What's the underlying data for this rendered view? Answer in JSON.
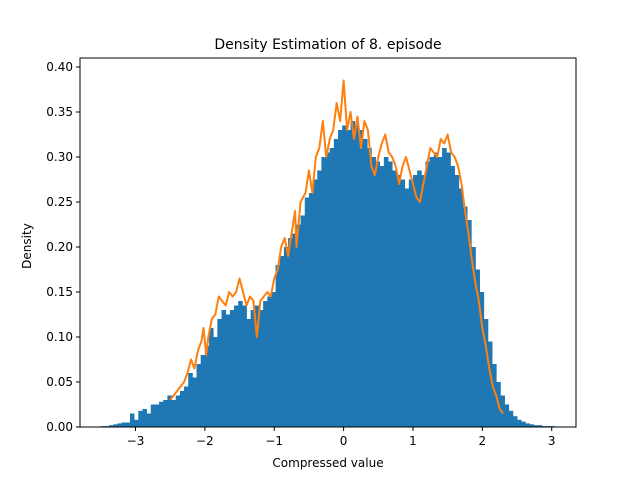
{
  "chart_data": {
    "type": "bar",
    "title": "Density Estimation of 8. episode",
    "xlabel": "Compressed value",
    "ylabel": "Density",
    "xlim": [
      -3.8,
      3.35
    ],
    "ylim": [
      0,
      0.41
    ],
    "xticks": [
      -3,
      -2,
      -1,
      0,
      1,
      2,
      3
    ],
    "xtick_labels": [
      "−3",
      "−2",
      "−1",
      "0",
      "1",
      "2",
      "3"
    ],
    "yticks": [
      0.0,
      0.05,
      0.1,
      0.15,
      0.2,
      0.25,
      0.3,
      0.35,
      0.4
    ],
    "ytick_labels": [
      "0.00",
      "0.05",
      "0.10",
      "0.15",
      "0.20",
      "0.25",
      "0.30",
      "0.35",
      "0.40"
    ],
    "grid": false,
    "series": [
      {
        "kind": "histogram",
        "color": "#1f77b4",
        "bin_width": 0.06,
        "bins": [
          [
            -3.5,
            0.001
          ],
          [
            -3.44,
            0.001
          ],
          [
            -3.38,
            0.002
          ],
          [
            -3.32,
            0.003
          ],
          [
            -3.26,
            0.004
          ],
          [
            -3.2,
            0.005
          ],
          [
            -3.14,
            0.005
          ],
          [
            -3.08,
            0.015
          ],
          [
            -3.02,
            0.008
          ],
          [
            -2.96,
            0.018
          ],
          [
            -2.9,
            0.02
          ],
          [
            -2.84,
            0.015
          ],
          [
            -2.78,
            0.025
          ],
          [
            -2.72,
            0.025
          ],
          [
            -2.66,
            0.028
          ],
          [
            -2.6,
            0.03
          ],
          [
            -2.54,
            0.035
          ],
          [
            -2.48,
            0.03
          ],
          [
            -2.42,
            0.035
          ],
          [
            -2.36,
            0.04
          ],
          [
            -2.3,
            0.045
          ],
          [
            -2.24,
            0.06
          ],
          [
            -2.18,
            0.055
          ],
          [
            -2.12,
            0.07
          ],
          [
            -2.06,
            0.08
          ],
          [
            -2.0,
            0.09
          ],
          [
            -1.94,
            0.11
          ],
          [
            -1.88,
            0.1
          ],
          [
            -1.82,
            0.12
          ],
          [
            -1.76,
            0.13
          ],
          [
            -1.7,
            0.125
          ],
          [
            -1.64,
            0.13
          ],
          [
            -1.58,
            0.135
          ],
          [
            -1.52,
            0.14
          ],
          [
            -1.46,
            0.135
          ],
          [
            -1.4,
            0.12
          ],
          [
            -1.34,
            0.13
          ],
          [
            -1.28,
            0.135
          ],
          [
            -1.22,
            0.13
          ],
          [
            -1.16,
            0.14
          ],
          [
            -1.1,
            0.145
          ],
          [
            -1.04,
            0.15
          ],
          [
            -0.98,
            0.18
          ],
          [
            -0.92,
            0.19
          ],
          [
            -0.86,
            0.2
          ],
          [
            -0.8,
            0.21
          ],
          [
            -0.74,
            0.215
          ],
          [
            -0.68,
            0.225
          ],
          [
            -0.62,
            0.235
          ],
          [
            -0.56,
            0.255
          ],
          [
            -0.5,
            0.26
          ],
          [
            -0.44,
            0.275
          ],
          [
            -0.38,
            0.285
          ],
          [
            -0.32,
            0.3
          ],
          [
            -0.26,
            0.305
          ],
          [
            -0.2,
            0.31
          ],
          [
            -0.14,
            0.32
          ],
          [
            -0.08,
            0.33
          ],
          [
            -0.02,
            0.335
          ],
          [
            0.04,
            0.33
          ],
          [
            0.1,
            0.34
          ],
          [
            0.16,
            0.335
          ],
          [
            0.22,
            0.33
          ],
          [
            0.28,
            0.32
          ],
          [
            0.34,
            0.31
          ],
          [
            0.4,
            0.3
          ],
          [
            0.46,
            0.295
          ],
          [
            0.52,
            0.29
          ],
          [
            0.58,
            0.3
          ],
          [
            0.64,
            0.295
          ],
          [
            0.7,
            0.285
          ],
          [
            0.76,
            0.28
          ],
          [
            0.82,
            0.275
          ],
          [
            0.88,
            0.265
          ],
          [
            0.94,
            0.275
          ],
          [
            1.0,
            0.28
          ],
          [
            1.06,
            0.285
          ],
          [
            1.12,
            0.28
          ],
          [
            1.18,
            0.295
          ],
          [
            1.24,
            0.3
          ],
          [
            1.3,
            0.305
          ],
          [
            1.36,
            0.3
          ],
          [
            1.42,
            0.31
          ],
          [
            1.48,
            0.305
          ],
          [
            1.54,
            0.29
          ],
          [
            1.6,
            0.28
          ],
          [
            1.66,
            0.265
          ],
          [
            1.72,
            0.245
          ],
          [
            1.78,
            0.23
          ],
          [
            1.84,
            0.2
          ],
          [
            1.9,
            0.175
          ],
          [
            1.96,
            0.15
          ],
          [
            2.02,
            0.12
          ],
          [
            2.08,
            0.095
          ],
          [
            2.14,
            0.07
          ],
          [
            2.2,
            0.05
          ],
          [
            2.26,
            0.035
          ],
          [
            2.32,
            0.025
          ],
          [
            2.38,
            0.018
          ],
          [
            2.44,
            0.012
          ],
          [
            2.5,
            0.008
          ],
          [
            2.56,
            0.006
          ],
          [
            2.62,
            0.004
          ],
          [
            2.68,
            0.003
          ],
          [
            2.74,
            0.002
          ],
          [
            2.8,
            0.002
          ],
          [
            2.86,
            0.001
          ],
          [
            2.92,
            0.001
          ],
          [
            2.98,
            0.001
          ]
        ]
      },
      {
        "kind": "line",
        "color": "#ff7f0e",
        "points": [
          [
            -2.5,
            0.03
          ],
          [
            -2.4,
            0.04
          ],
          [
            -2.3,
            0.05
          ],
          [
            -2.25,
            0.06
          ],
          [
            -2.2,
            0.075
          ],
          [
            -2.15,
            0.065
          ],
          [
            -2.1,
            0.085
          ],
          [
            -2.05,
            0.095
          ],
          [
            -2.02,
            0.11
          ],
          [
            -1.98,
            0.08
          ],
          [
            -1.95,
            0.1
          ],
          [
            -1.9,
            0.12
          ],
          [
            -1.85,
            0.125
          ],
          [
            -1.8,
            0.145
          ],
          [
            -1.75,
            0.14
          ],
          [
            -1.7,
            0.135
          ],
          [
            -1.65,
            0.15
          ],
          [
            -1.6,
            0.145
          ],
          [
            -1.55,
            0.15
          ],
          [
            -1.5,
            0.165
          ],
          [
            -1.45,
            0.15
          ],
          [
            -1.4,
            0.135
          ],
          [
            -1.35,
            0.145
          ],
          [
            -1.3,
            0.14
          ],
          [
            -1.25,
            0.1
          ],
          [
            -1.2,
            0.14
          ],
          [
            -1.15,
            0.145
          ],
          [
            -1.1,
            0.15
          ],
          [
            -1.05,
            0.145
          ],
          [
            -1.0,
            0.165
          ],
          [
            -0.95,
            0.175
          ],
          [
            -0.9,
            0.2
          ],
          [
            -0.85,
            0.21
          ],
          [
            -0.8,
            0.19
          ],
          [
            -0.75,
            0.215
          ],
          [
            -0.7,
            0.24
          ],
          [
            -0.68,
            0.2
          ],
          [
            -0.62,
            0.25
          ],
          [
            -0.55,
            0.26
          ],
          [
            -0.5,
            0.285
          ],
          [
            -0.45,
            0.26
          ],
          [
            -0.4,
            0.3
          ],
          [
            -0.35,
            0.31
          ],
          [
            -0.3,
            0.34
          ],
          [
            -0.25,
            0.3
          ],
          [
            -0.2,
            0.32
          ],
          [
            -0.15,
            0.33
          ],
          [
            -0.1,
            0.36
          ],
          [
            -0.05,
            0.34
          ],
          [
            0.0,
            0.385
          ],
          [
            0.05,
            0.33
          ],
          [
            0.1,
            0.35
          ],
          [
            0.15,
            0.32
          ],
          [
            0.2,
            0.345
          ],
          [
            0.25,
            0.31
          ],
          [
            0.3,
            0.34
          ],
          [
            0.35,
            0.33
          ],
          [
            0.4,
            0.29
          ],
          [
            0.45,
            0.28
          ],
          [
            0.5,
            0.3
          ],
          [
            0.55,
            0.315
          ],
          [
            0.6,
            0.325
          ],
          [
            0.65,
            0.305
          ],
          [
            0.7,
            0.3
          ],
          [
            0.75,
            0.29
          ],
          [
            0.8,
            0.27
          ],
          [
            0.85,
            0.29
          ],
          [
            0.9,
            0.3
          ],
          [
            0.95,
            0.285
          ],
          [
            1.0,
            0.27
          ],
          [
            1.05,
            0.255
          ],
          [
            1.1,
            0.25
          ],
          [
            1.15,
            0.27
          ],
          [
            1.2,
            0.29
          ],
          [
            1.25,
            0.31
          ],
          [
            1.3,
            0.305
          ],
          [
            1.35,
            0.3
          ],
          [
            1.4,
            0.32
          ],
          [
            1.45,
            0.315
          ],
          [
            1.5,
            0.325
          ],
          [
            1.55,
            0.305
          ],
          [
            1.6,
            0.3
          ],
          [
            1.65,
            0.29
          ],
          [
            1.7,
            0.27
          ],
          [
            1.75,
            0.24
          ],
          [
            1.8,
            0.215
          ],
          [
            1.85,
            0.185
          ],
          [
            1.9,
            0.16
          ],
          [
            1.95,
            0.14
          ],
          [
            2.0,
            0.11
          ],
          [
            2.05,
            0.09
          ],
          [
            2.1,
            0.065
          ],
          [
            2.15,
            0.045
          ],
          [
            2.2,
            0.035
          ],
          [
            2.25,
            0.02
          ],
          [
            2.3,
            0.015
          ]
        ]
      }
    ]
  }
}
